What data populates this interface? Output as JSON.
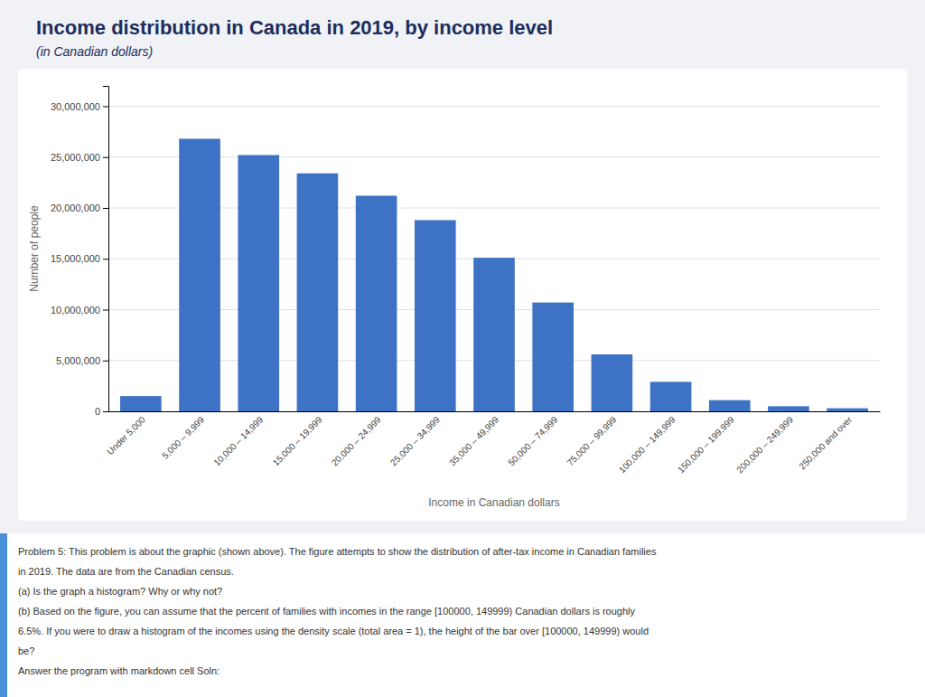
{
  "chart_data": {
    "type": "bar",
    "title": "Income distribution in Canada in 2019, by income level",
    "subtitle": "(in Canadian dollars)",
    "x_label": "Income in Canadian dollars",
    "y_label": "Number of people",
    "categories": [
      "Under 5,000",
      "5,000 – 9,999",
      "10,000 – 14,999",
      "15,000 – 19,999",
      "20,000 – 24,999",
      "25,000 – 34,999",
      "35,000 – 49,999",
      "50,000 – 74,999",
      "75,000 – 99,999",
      "100,000 – 149,999",
      "150,000 – 199,999",
      "200,000 – 249,999",
      "250,000 and over"
    ],
    "values": [
      1500000,
      26800000,
      25200000,
      23400000,
      21200000,
      18800000,
      15100000,
      10700000,
      5600000,
      2900000,
      1100000,
      500000,
      300000
    ],
    "color": "#3e72c4",
    "ylim": [
      0,
      32000000
    ],
    "yticks": [
      0,
      {
        "value": 5000000,
        "label": "5,000,000"
      },
      {
        "value": 10000000,
        "label": "10,000,000"
      },
      {
        "value": 15000000,
        "label": "15,000,000"
      },
      {
        "value": 20000000,
        "label": "20,000,000"
      },
      {
        "value": 25000000,
        "label": "25,000,000"
      },
      {
        "value": 30000000,
        "label": "30,000,000"
      }
    ],
    "grid": true,
    "annotations": [
      "Problem 5: This problem is about the graphic (shown above). The figure attempts to show the distribution of after-tax income in Canadian families",
      "in 2019. The data are from the Canadian census.",
      "(a) Is the graph a histogram? Why or why not?",
      "(b) Based on the figure, you can assume that the percent of families with incomes in the range [100000, 149999) Canadian dollars is roughly",
      "6.5%. If you were to draw a histogram of the incomes using the density scale (total area = 1), the height of the bar over [100000, 149999) would",
      "be?",
      "Answer the program with markdown cell Soln:"
    ]
  }
}
